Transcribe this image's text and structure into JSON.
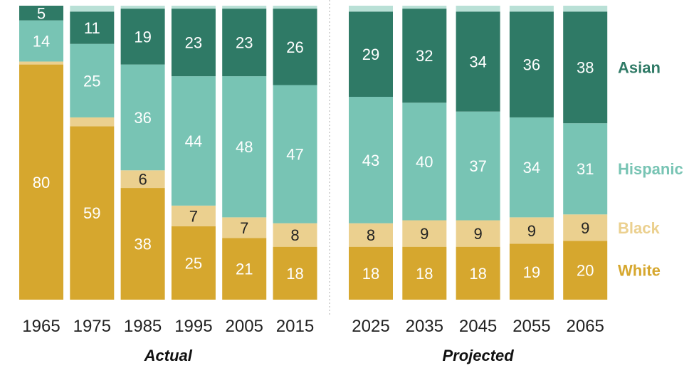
{
  "chart_data": {
    "type": "bar",
    "stacked": true,
    "groups": [
      {
        "label": "Actual",
        "categories": [
          "1965",
          "1975",
          "1985",
          "1995",
          "2005",
          "2015"
        ]
      },
      {
        "label": "Projected",
        "categories": [
          "2025",
          "2035",
          "2045",
          "2055",
          "2065"
        ]
      }
    ],
    "categories": [
      "1965",
      "1975",
      "1985",
      "1995",
      "2005",
      "2015",
      "2025",
      "2035",
      "2045",
      "2055",
      "2065"
    ],
    "series": [
      {
        "name": "White",
        "color": "#d6a72e",
        "label_color": "#ffffff",
        "values": [
          80,
          59,
          38,
          25,
          21,
          18,
          18,
          18,
          18,
          19,
          20
        ],
        "labels": [
          "80",
          "59",
          "38",
          "25",
          "21",
          "18",
          "18",
          "18",
          "18",
          "19",
          "20"
        ]
      },
      {
        "name": "Black",
        "color": "#ebd08f",
        "label_color": "#222222",
        "values": [
          1,
          3,
          6,
          7,
          7,
          8,
          8,
          9,
          9,
          9,
          9
        ],
        "labels": [
          "",
          "",
          "6",
          "7",
          "7",
          "8",
          "8",
          "9",
          "9",
          "9",
          "9"
        ]
      },
      {
        "name": "Hispanic",
        "color": "#78c4b4",
        "label_color": "#ffffff",
        "values": [
          14,
          25,
          36,
          44,
          48,
          47,
          43,
          40,
          37,
          34,
          31
        ],
        "labels": [
          "14",
          "25",
          "36",
          "44",
          "48",
          "47",
          "43",
          "40",
          "37",
          "34",
          "31"
        ]
      },
      {
        "name": "Asian",
        "color": "#2f7a66",
        "label_color": "#ffffff",
        "values": [
          5,
          11,
          19,
          23,
          23,
          26,
          29,
          32,
          34,
          36,
          38
        ],
        "labels": [
          "5",
          "11",
          "19",
          "23",
          "23",
          "26",
          "29",
          "32",
          "34",
          "36",
          "38"
        ]
      },
      {
        "name": "",
        "color": "#b9e0d6",
        "label_color": "#ffffff",
        "values": [
          0,
          2,
          1,
          1,
          1,
          1,
          2,
          1,
          2,
          2,
          2
        ],
        "labels": [
          "",
          "",
          "",
          "",
          "",
          "",
          "",
          "",
          "",
          "",
          ""
        ]
      }
    ],
    "legend": {
      "placement": "right",
      "entries": [
        {
          "name": "Asian",
          "color": "#2f7a66"
        },
        {
          "name": "Hispanic",
          "color": "#78c4b4"
        },
        {
          "name": "Black",
          "color": "#ebd08f"
        },
        {
          "name": "White",
          "color": "#d6a72e"
        }
      ]
    },
    "ylim": [
      0,
      100
    ],
    "grid": false,
    "title": "",
    "xlabel": "",
    "ylabel": ""
  }
}
